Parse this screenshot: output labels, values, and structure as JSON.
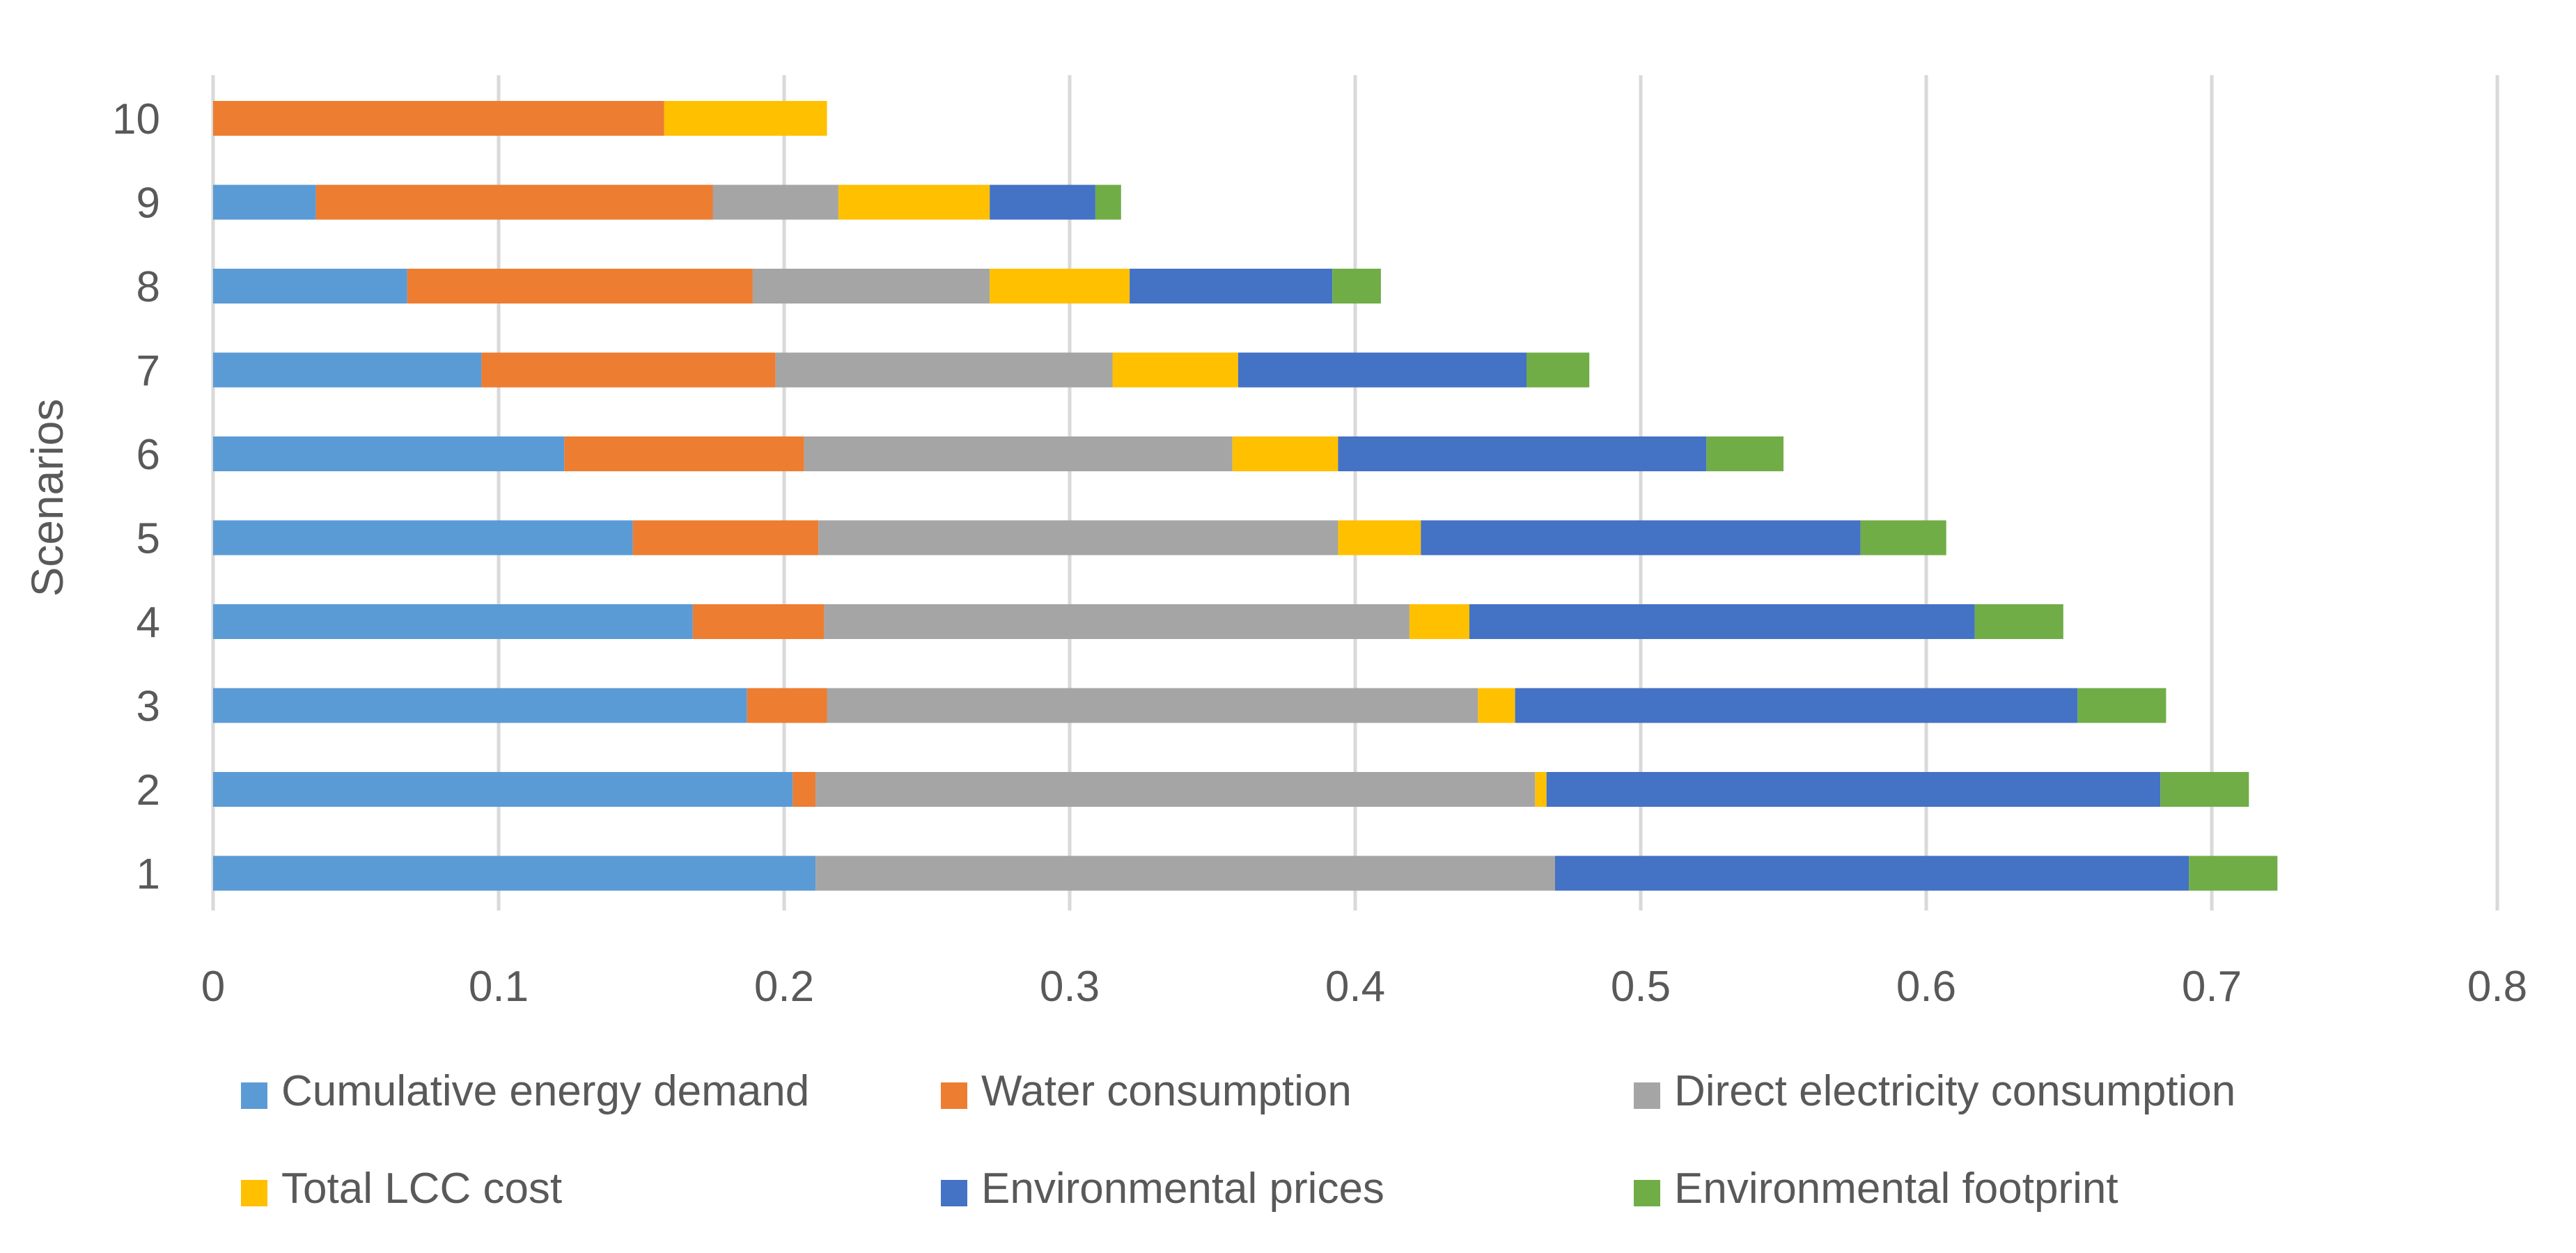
{
  "chart_data": {
    "type": "bar",
    "orientation": "horizontal",
    "stacked": true,
    "title": "",
    "xlabel": "",
    "ylabel": "Scenarios",
    "xlim": [
      0,
      0.8
    ],
    "xticks": [
      0,
      0.1,
      0.2,
      0.3,
      0.4,
      0.5,
      0.6,
      0.7,
      0.8
    ],
    "xtick_labels": [
      "0",
      "0.1",
      "0.2",
      "0.3",
      "0.4",
      "0.5",
      "0.6",
      "0.7",
      "0.8"
    ],
    "grid": "vertical",
    "legend_position": "bottom",
    "categories": [
      "1",
      "2",
      "3",
      "4",
      "5",
      "6",
      "7",
      "8",
      "9",
      "10"
    ],
    "series": [
      {
        "name": "Cumulative energy demand",
        "color": "#5B9BD5",
        "values": [
          0.211,
          0.203,
          0.187,
          0.168,
          0.147,
          0.123,
          0.094,
          0.068,
          0.036,
          0.0
        ]
      },
      {
        "name": "Water consumption",
        "color": "#ED7D31",
        "values": [
          0.0,
          0.008,
          0.028,
          0.046,
          0.065,
          0.084,
          0.103,
          0.121,
          0.139,
          0.158
        ]
      },
      {
        "name": "Direct electricity consumption",
        "color": "#A5A5A5",
        "values": [
          0.259,
          0.252,
          0.228,
          0.205,
          0.182,
          0.15,
          0.118,
          0.083,
          0.044,
          0.0
        ]
      },
      {
        "name": "Total LCC cost",
        "color": "#FFC000",
        "values": [
          0.0,
          0.004,
          0.013,
          0.021,
          0.029,
          0.037,
          0.044,
          0.049,
          0.053,
          0.057
        ]
      },
      {
        "name": "Environmental prices",
        "color": "#4472C4",
        "values": [
          0.222,
          0.215,
          0.197,
          0.177,
          0.154,
          0.129,
          0.101,
          0.071,
          0.037,
          0.0
        ]
      },
      {
        "name": "Environmental footprint",
        "color": "#70AD47",
        "values": [
          0.031,
          0.031,
          0.031,
          0.031,
          0.03,
          0.027,
          0.022,
          0.017,
          0.009,
          0.0
        ]
      }
    ]
  }
}
